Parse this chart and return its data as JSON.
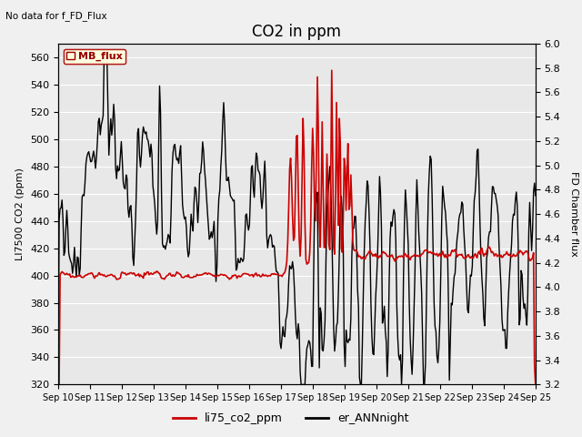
{
  "title": "CO2 in ppm",
  "top_left_text": "No data for f_FD_Flux",
  "legend_box_text": "MB_flux",
  "ylabel_left": "LI7500 CO2 (ppm)",
  "ylabel_right": "FD Chamber flux",
  "ylim_left": [
    320,
    570
  ],
  "ylim_right": [
    3.2,
    6.0
  ],
  "yticks_left": [
    320,
    340,
    360,
    380,
    400,
    420,
    440,
    460,
    480,
    500,
    520,
    540,
    560
  ],
  "yticks_right": [
    3.2,
    3.4,
    3.6,
    3.8,
    4.0,
    4.2,
    4.4,
    4.6,
    4.8,
    5.0,
    5.2,
    5.4,
    5.6,
    5.8,
    6.0
  ],
  "xticklabels": [
    "Sep 10",
    "Sep 11",
    "Sep 12",
    "Sep 13",
    "Sep 14",
    "Sep 15",
    "Sep 16",
    "Sep 17",
    "Sep 18",
    "Sep 19",
    "Sep 20",
    "Sep 21",
    "Sep 22",
    "Sep 23",
    "Sep 24",
    "Sep 25"
  ],
  "legend_items": [
    {
      "label": "li75_co2_ppm",
      "color": "#cc0000",
      "lw": 1.2
    },
    {
      "label": "er_ANNnight",
      "color": "#000000",
      "lw": 1.0
    }
  ],
  "background_color": "#f0f0f0",
  "plot_bg_color": "#e8e8e8",
  "grid_color": "#ffffff",
  "title_fontsize": 12,
  "label_fontsize": 8,
  "tick_fontsize": 8
}
